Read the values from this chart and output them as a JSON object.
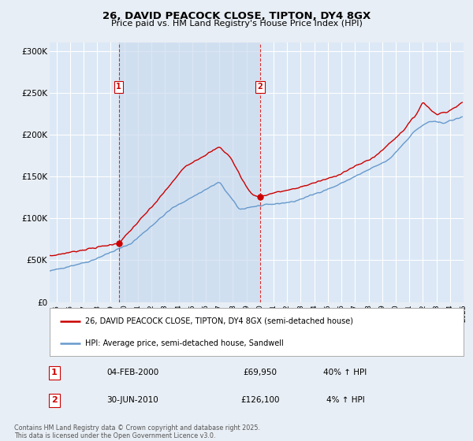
{
  "title_line1": "26, DAVID PEACOCK CLOSE, TIPTON, DY4 8GX",
  "title_line2": "Price paid vs. HM Land Registry's House Price Index (HPI)",
  "legend_label_red": "26, DAVID PEACOCK CLOSE, TIPTON, DY4 8GX (semi-detached house)",
  "legend_label_blue": "HPI: Average price, semi-detached house, Sandwell",
  "annotation1_num": "1",
  "annotation1_date": "04-FEB-2000",
  "annotation1_price": "£69,950",
  "annotation1_hpi": "40% ↑ HPI",
  "annotation2_num": "2",
  "annotation2_date": "30-JUN-2010",
  "annotation2_price": "£126,100",
  "annotation2_hpi": "4% ↑ HPI",
  "footer": "Contains HM Land Registry data © Crown copyright and database right 2025.\nThis data is licensed under the Open Government Licence v3.0.",
  "xmin": 1995.0,
  "xmax": 2025.5,
  "ymin": 0,
  "ymax": 310000,
  "yticks": [
    0,
    50000,
    100000,
    150000,
    200000,
    250000,
    300000
  ],
  "ytick_labels": [
    "£0",
    "£50K",
    "£100K",
    "£150K",
    "£200K",
    "£250K",
    "£300K"
  ],
  "vline1_x": 2000.09,
  "vline2_x": 2010.5,
  "bg_color": "#e8eef5",
  "plot_bg": "#dce8f5",
  "shade_color": "#ccdcee",
  "red_color": "#cc0000",
  "blue_color": "#6699cc",
  "vline_color": "#cc0000",
  "grid_color": "#ffffff"
}
